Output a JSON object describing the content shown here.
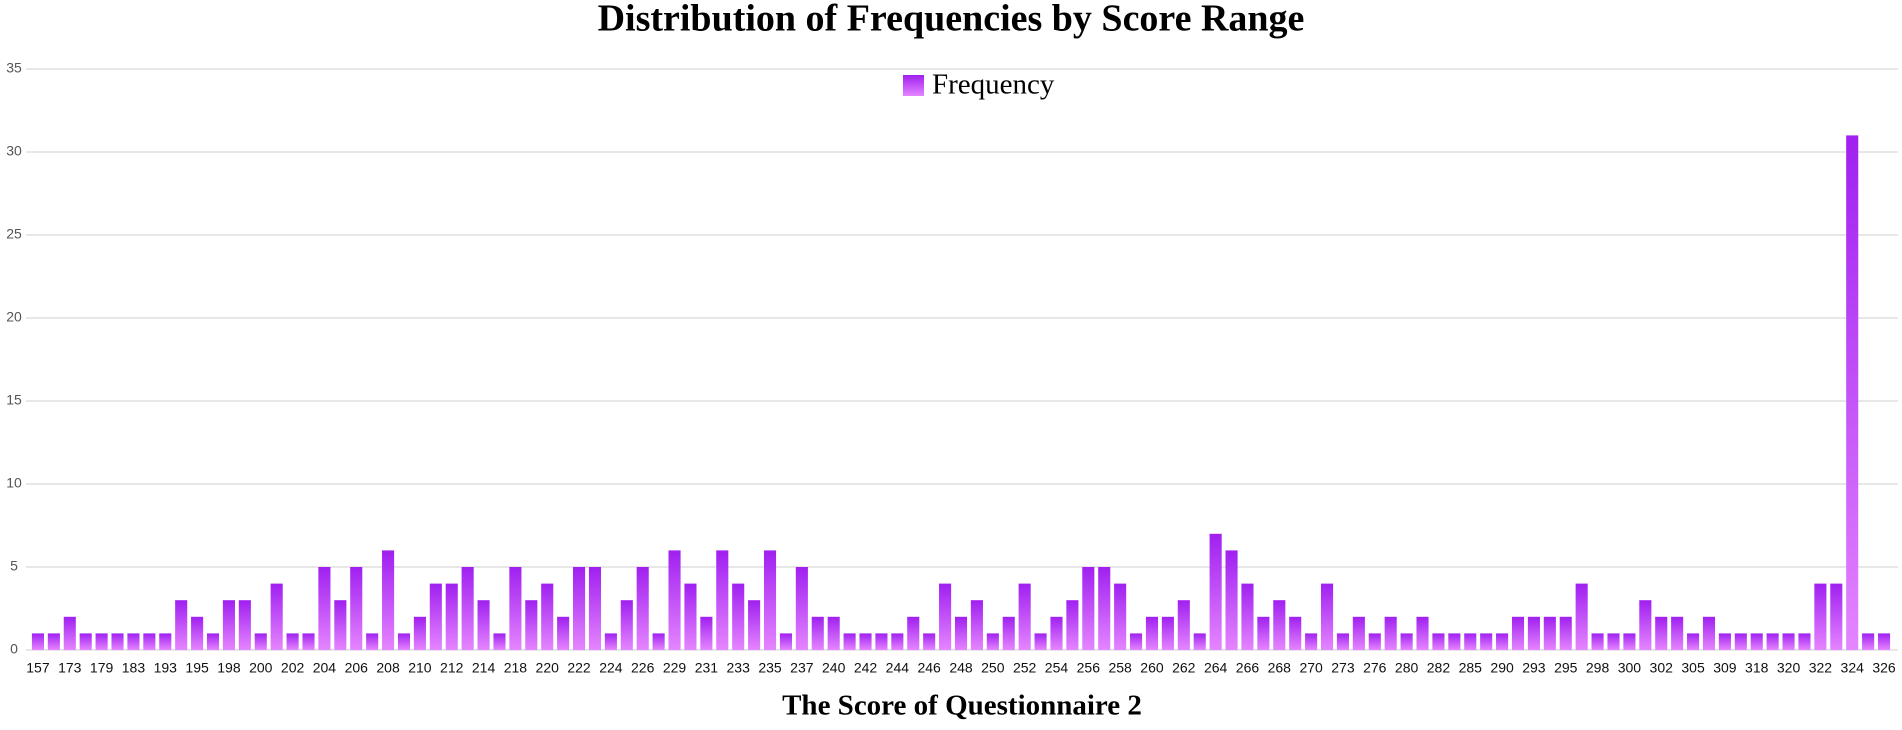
{
  "chart_data": {
    "type": "bar",
    "title": "Distribution of Frequencies by Score Range",
    "x_label": "The Score of Questionnaire 2",
    "categories": [
      "157",
      null,
      "173",
      null,
      "179",
      null,
      "183",
      null,
      "193",
      null,
      "195",
      null,
      "198",
      null,
      "200",
      null,
      "202",
      null,
      "204",
      null,
      "206",
      null,
      "208",
      null,
      "210",
      null,
      "212",
      null,
      "214",
      null,
      "218",
      null,
      "220",
      null,
      "222",
      null,
      "224",
      null,
      "226",
      null,
      "229",
      null,
      "231",
      null,
      "233",
      null,
      "235",
      null,
      "237",
      null,
      "240",
      null,
      "242",
      null,
      "244",
      null,
      "246",
      null,
      "248",
      null,
      "250",
      null,
      "252",
      null,
      "254",
      null,
      "256",
      null,
      "258",
      null,
      "260",
      null,
      "262",
      null,
      "264",
      null,
      "266",
      null,
      "268",
      null,
      "270",
      null,
      "273",
      null,
      "276",
      null,
      "280",
      null,
      "282",
      null,
      "285",
      null,
      "290",
      null,
      "293",
      null,
      "295",
      null,
      "298",
      null,
      "300",
      null,
      "302",
      null,
      "305",
      null,
      "309",
      null,
      "318",
      null,
      "320",
      null,
      "322",
      null,
      "324",
      null,
      "326"
    ],
    "series": [
      {
        "name": "Frequency",
        "color": "#a020f0",
        "values": [
          1,
          1,
          2,
          1,
          1,
          1,
          1,
          1,
          1,
          3,
          2,
          1,
          3,
          3,
          1,
          4,
          1,
          1,
          5,
          3,
          5,
          1,
          6,
          1,
          2,
          4,
          4,
          5,
          3,
          1,
          5,
          3,
          4,
          2,
          5,
          5,
          1,
          3,
          5,
          1,
          6,
          4,
          2,
          6,
          4,
          3,
          6,
          1,
          5,
          2,
          2,
          1,
          1,
          1,
          1,
          2,
          1,
          4,
          2,
          3,
          1,
          2,
          4,
          1,
          2,
          3,
          5,
          5,
          4,
          1,
          2,
          2,
          3,
          1,
          7,
          6,
          4,
          2,
          3,
          2,
          1,
          4,
          1,
          2,
          1,
          2,
          1,
          2,
          1,
          1,
          1,
          1,
          1,
          2,
          2,
          2,
          2,
          4,
          1,
          1,
          1,
          3,
          2,
          2,
          1,
          2,
          1,
          1,
          1,
          1,
          1,
          1,
          4,
          4,
          31,
          1,
          1
        ]
      }
    ],
    "ylim": [
      0,
      35
    ],
    "yticks": [
      0,
      5,
      10,
      15,
      20,
      25,
      30,
      35
    ],
    "grid": true,
    "legend": "top"
  }
}
